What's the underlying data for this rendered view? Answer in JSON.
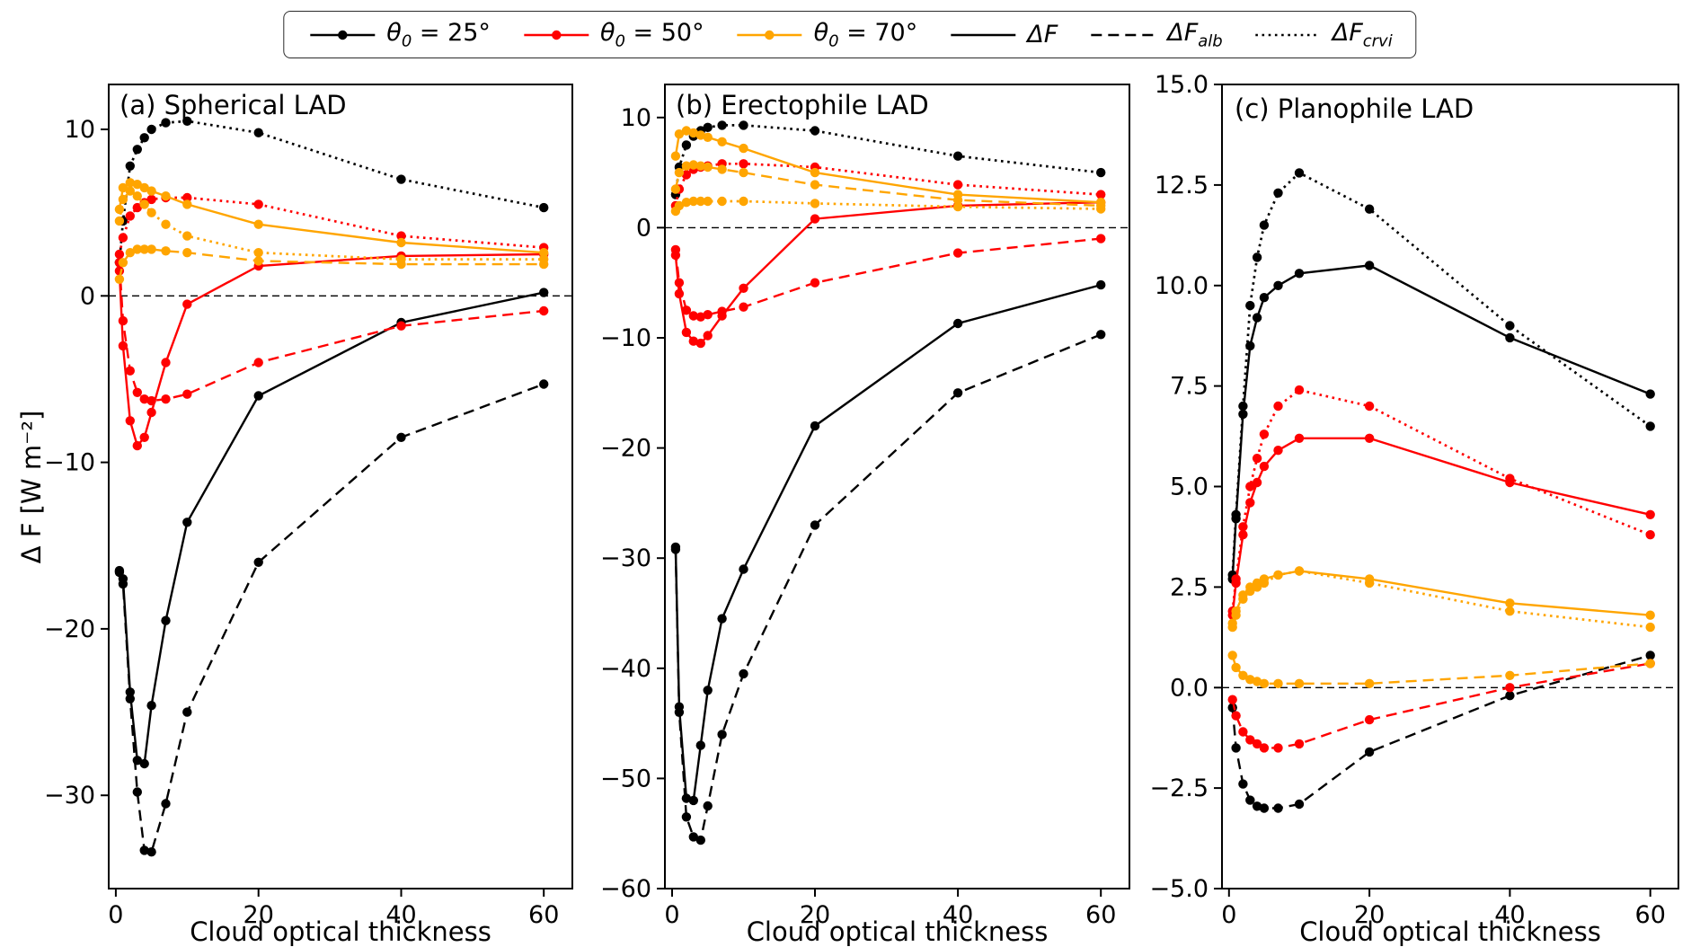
{
  "chart_data": {
    "type": "line",
    "title": "",
    "xlabel": "Cloud optical thickness",
    "ylabel": "Δ F [W m⁻²]",
    "grid": false,
    "markers": "filled circles on every point",
    "colors": {
      "theta25": "#000000",
      "theta50": "#ff0000",
      "theta70": "#ffa500"
    },
    "legend": {
      "position": "top-center",
      "items": [
        {
          "id": "theta-25",
          "sym": "θ",
          "sub": "0",
          "rest": " =  25°",
          "color": "#000000",
          "style": "solid",
          "marker": true
        },
        {
          "id": "theta-50",
          "sym": "θ",
          "sub": "0",
          "rest": " =  50°",
          "color": "#ff0000",
          "style": "solid",
          "marker": true
        },
        {
          "id": "theta-70",
          "sym": "θ",
          "sub": "0",
          "rest": " =  70°",
          "color": "#ffa500",
          "style": "solid",
          "marker": true
        },
        {
          "id": "dF",
          "sym": "ΔF",
          "sub": "",
          "rest": "",
          "color": "#000000",
          "style": "solid",
          "marker": false
        },
        {
          "id": "dF-alb",
          "sym": "ΔF",
          "sub": "alb",
          "rest": "",
          "color": "#000000",
          "style": "dashed",
          "marker": false
        },
        {
          "id": "dF-crvi",
          "sym": "ΔF",
          "sub": "crvi",
          "rest": "",
          "color": "#000000",
          "style": "dotted",
          "marker": false
        }
      ]
    },
    "panels": [
      {
        "id": "a",
        "title": "(a) Spherical LAD",
        "xlabel": "Cloud optical thickness",
        "xlim": [
          -1,
          64
        ],
        "ylim": [
          -35.6,
          12.7
        ],
        "xticks": [
          {
            "v": 0,
            "label": "0"
          },
          {
            "v": 20,
            "label": "20"
          },
          {
            "v": 40,
            "label": "40"
          },
          {
            "v": 60,
            "label": "60"
          }
        ],
        "yticks": [
          {
            "v": 10,
            "label": "10"
          },
          {
            "v": 0,
            "label": "0"
          },
          {
            "v": -10,
            "label": "−10"
          },
          {
            "v": -20,
            "label": "−20"
          },
          {
            "v": -30,
            "label": "−30"
          }
        ],
        "zero_line": true,
        "x": [
          0.5,
          1,
          2,
          3,
          4,
          5,
          7,
          10,
          20,
          40,
          60
        ],
        "series": [
          {
            "id": "a-t25-dF",
            "name": "θ0=25° ΔF",
            "color": "#000000",
            "style": "solid",
            "values": [
              -16.5,
              -17.0,
              -23.8,
              -27.9,
              -28.1,
              -24.6,
              -19.5,
              -13.6,
              -6.0,
              -1.6,
              0.2
            ]
          },
          {
            "id": "a-t25-dFalb",
            "name": "θ0=25° ΔF_alb",
            "color": "#000000",
            "style": "dashed",
            "values": [
              -16.6,
              -17.3,
              -24.2,
              -29.8,
              -33.3,
              -33.4,
              -30.5,
              -25.0,
              -16.0,
              -8.5,
              -5.3
            ]
          },
          {
            "id": "a-t25-dFcrvi",
            "name": "θ0=25° ΔF_crvi",
            "color": "#000000",
            "style": "dotted",
            "values": [
              2.0,
              4.5,
              7.8,
              8.8,
              9.5,
              10.0,
              10.4,
              10.5,
              9.8,
              7.0,
              5.3
            ]
          },
          {
            "id": "a-t50-dF",
            "name": "θ0=50° ΔF",
            "color": "#ff0000",
            "style": "solid",
            "values": [
              1.5,
              -3.0,
              -7.5,
              -9.0,
              -8.5,
              -7.0,
              -4.0,
              -0.5,
              1.8,
              2.4,
              2.5
            ]
          },
          {
            "id": "a-t50-dFalb",
            "name": "θ0=50° ΔF_alb",
            "color": "#ff0000",
            "style": "dashed",
            "values": [
              2.0,
              -1.5,
              -4.5,
              -5.8,
              -6.2,
              -6.3,
              -6.2,
              -5.9,
              -4.0,
              -1.8,
              -0.9
            ]
          },
          {
            "id": "a-t50-dFcrvi",
            "name": "θ0=50° ΔF_crvi",
            "color": "#ff0000",
            "style": "dotted",
            "values": [
              2.5,
              3.5,
              4.8,
              5.3,
              5.6,
              5.8,
              5.9,
              5.9,
              5.5,
              3.6,
              2.9
            ]
          },
          {
            "id": "a-t70-dF",
            "name": "θ0=70° ΔF",
            "color": "#ffa500",
            "style": "solid",
            "values": [
              5.2,
              6.5,
              6.8,
              6.7,
              6.5,
              6.3,
              6.0,
              5.5,
              4.3,
              3.2,
              2.6
            ]
          },
          {
            "id": "a-t70-dFalb",
            "name": "θ0=70° ΔF_alb",
            "color": "#ffa500",
            "style": "dashed",
            "values": [
              1.0,
              2.0,
              2.6,
              2.8,
              2.8,
              2.8,
              2.7,
              2.6,
              2.1,
              1.9,
              1.9
            ]
          },
          {
            "id": "a-t70-dFcrvi",
            "name": "θ0=70° ΔF_crvi",
            "color": "#ffa500",
            "style": "dotted",
            "values": [
              4.5,
              5.8,
              6.3,
              6.0,
              5.5,
              5.0,
              4.3,
              3.6,
              2.6,
              2.2,
              2.2
            ]
          }
        ]
      },
      {
        "id": "b",
        "title": "(b) Erectophile LAD",
        "xlabel": "Cloud optical thickness",
        "xlim": [
          -1,
          64
        ],
        "ylim": [
          -60,
          13
        ],
        "xticks": [
          {
            "v": 0,
            "label": "0"
          },
          {
            "v": 20,
            "label": "20"
          },
          {
            "v": 40,
            "label": "40"
          },
          {
            "v": 60,
            "label": "60"
          }
        ],
        "yticks": [
          {
            "v": 10,
            "label": "10"
          },
          {
            "v": 0,
            "label": "0"
          },
          {
            "v": -10,
            "label": "−10"
          },
          {
            "v": -20,
            "label": "−20"
          },
          {
            "v": -30,
            "label": "−30"
          },
          {
            "v": -40,
            "label": "−40"
          },
          {
            "v": -50,
            "label": "−50"
          },
          {
            "v": -60,
            "label": "−60"
          }
        ],
        "zero_line": true,
        "x": [
          0.5,
          1,
          2,
          3,
          4,
          5,
          7,
          10,
          20,
          40,
          60
        ],
        "series": [
          {
            "id": "b-t25-dF",
            "name": "θ0=25° ΔF",
            "color": "#000000",
            "style": "solid",
            "values": [
              -29.0,
              -43.5,
              -51.8,
              -52.0,
              -47.0,
              -42.0,
              -35.5,
              -31.0,
              -18.0,
              -8.7,
              -5.2
            ]
          },
          {
            "id": "b-t25-dFalb",
            "name": "θ0=25° ΔF_alb",
            "color": "#000000",
            "style": "dashed",
            "values": [
              -29.2,
              -44.0,
              -53.5,
              -55.3,
              -55.6,
              -52.5,
              -46.0,
              -40.5,
              -27.0,
              -15.0,
              -9.7
            ]
          },
          {
            "id": "b-t25-dFcrvi",
            "name": "θ0=25° ΔF_crvi",
            "color": "#000000",
            "style": "dotted",
            "values": [
              3.0,
              5.5,
              7.5,
              8.3,
              8.8,
              9.1,
              9.3,
              9.3,
              8.8,
              6.5,
              5.0
            ]
          },
          {
            "id": "b-t50-dF",
            "name": "θ0=50° ΔF",
            "color": "#ff0000",
            "style": "solid",
            "values": [
              -2.5,
              -6.0,
              -9.5,
              -10.3,
              -10.5,
              -9.8,
              -8.0,
              -5.5,
              0.8,
              2.0,
              2.3
            ]
          },
          {
            "id": "b-t50-dFalb",
            "name": "θ0=50° ΔF_alb",
            "color": "#ff0000",
            "style": "dashed",
            "values": [
              -2.0,
              -5.0,
              -7.5,
              -8.0,
              -8.1,
              -7.9,
              -7.6,
              -7.2,
              -5.0,
              -2.3,
              -1.0
            ]
          },
          {
            "id": "b-t50-dFcrvi",
            "name": "θ0=50° ΔF_crvi",
            "color": "#ff0000",
            "style": "dotted",
            "values": [
              2.0,
              3.5,
              4.8,
              5.3,
              5.5,
              5.6,
              5.8,
              5.8,
              5.5,
              3.9,
              3.0
            ]
          },
          {
            "id": "b-t70-dF",
            "name": "θ0=70° ΔF",
            "color": "#ffa500",
            "style": "solid",
            "values": [
              6.5,
              8.5,
              8.8,
              8.6,
              8.4,
              8.2,
              7.8,
              7.2,
              5.0,
              3.0,
              2.3
            ]
          },
          {
            "id": "b-t70-dFalb",
            "name": "θ0=70° ΔF_alb",
            "color": "#ffa500",
            "style": "dashed",
            "values": [
              3.5,
              5.0,
              5.6,
              5.7,
              5.6,
              5.5,
              5.3,
              5.0,
              3.9,
              2.5,
              2.0
            ]
          },
          {
            "id": "b-t70-dFcrvi",
            "name": "θ0=70° ΔF_crvi",
            "color": "#ffa500",
            "style": "dotted",
            "values": [
              1.5,
              2.0,
              2.3,
              2.4,
              2.4,
              2.4,
              2.4,
              2.4,
              2.2,
              1.9,
              1.7
            ]
          }
        ]
      },
      {
        "id": "c",
        "title": "(c) Planophile LAD",
        "xlabel": "Cloud optical thickness",
        "xlim": [
          -1,
          64
        ],
        "ylim": [
          -5,
          15
        ],
        "xticks": [
          {
            "v": 0,
            "label": "0"
          },
          {
            "v": 20,
            "label": "20"
          },
          {
            "v": 40,
            "label": "40"
          },
          {
            "v": 60,
            "label": "60"
          }
        ],
        "yticks": [
          {
            "v": 15,
            "label": "15.0"
          },
          {
            "v": 12.5,
            "label": "12.5"
          },
          {
            "v": 10,
            "label": "10.0"
          },
          {
            "v": 7.5,
            "label": "7.5"
          },
          {
            "v": 5,
            "label": "5.0"
          },
          {
            "v": 2.5,
            "label": "2.5"
          },
          {
            "v": 0,
            "label": "0.0"
          },
          {
            "v": -2.5,
            "label": "−2.5"
          },
          {
            "v": -5,
            "label": "−5.0"
          }
        ],
        "zero_line": true,
        "x": [
          0.5,
          1,
          2,
          3,
          4,
          5,
          7,
          10,
          20,
          40,
          60
        ],
        "series": [
          {
            "id": "c-t25-dF",
            "name": "θ0=25° ΔF",
            "color": "#000000",
            "style": "solid",
            "values": [
              2.7,
              4.2,
              6.8,
              8.5,
              9.2,
              9.7,
              10.0,
              10.3,
              10.5,
              8.7,
              7.3
            ]
          },
          {
            "id": "c-t25-dFalb",
            "name": "θ0=25° ΔF_alb",
            "color": "#000000",
            "style": "dashed",
            "values": [
              -0.5,
              -1.5,
              -2.4,
              -2.8,
              -2.95,
              -3.0,
              -3.0,
              -2.9,
              -1.6,
              -0.2,
              0.8
            ]
          },
          {
            "id": "c-t25-dFcrvi",
            "name": "θ0=25° ΔF_crvi",
            "color": "#000000",
            "style": "dotted",
            "values": [
              2.8,
              4.3,
              7.0,
              9.5,
              10.7,
              11.5,
              12.3,
              12.8,
              11.9,
              9.0,
              6.5
            ]
          },
          {
            "id": "c-t50-dF",
            "name": "θ0=50° ΔF",
            "color": "#ff0000",
            "style": "solid",
            "values": [
              1.8,
              2.6,
              3.8,
              4.6,
              5.1,
              5.5,
              5.9,
              6.2,
              6.2,
              5.1,
              4.3
            ]
          },
          {
            "id": "c-t50-dFalb",
            "name": "θ0=50° ΔF_alb",
            "color": "#ff0000",
            "style": "dashed",
            "values": [
              -0.3,
              -0.7,
              -1.1,
              -1.3,
              -1.4,
              -1.5,
              -1.5,
              -1.4,
              -0.8,
              0.0,
              0.6
            ]
          },
          {
            "id": "c-t50-dFcrvi",
            "name": "θ0=50° ΔF_crvi",
            "color": "#ff0000",
            "style": "dotted",
            "values": [
              1.9,
              2.7,
              4.0,
              5.0,
              5.7,
              6.3,
              7.0,
              7.4,
              7.0,
              5.2,
              3.8
            ]
          },
          {
            "id": "c-t70-dF",
            "name": "θ0=70° ΔF",
            "color": "#ffa500",
            "style": "solid",
            "values": [
              1.6,
              1.9,
              2.3,
              2.5,
              2.6,
              2.7,
              2.8,
              2.9,
              2.7,
              2.1,
              1.8
            ]
          },
          {
            "id": "c-t70-dFalb",
            "name": "θ0=70° ΔF_alb",
            "color": "#ffa500",
            "style": "dashed",
            "values": [
              0.8,
              0.5,
              0.3,
              0.2,
              0.15,
              0.1,
              0.1,
              0.1,
              0.1,
              0.3,
              0.6
            ]
          },
          {
            "id": "c-t70-dFcrvi",
            "name": "θ0=70° ΔF_crvi",
            "color": "#ffa500",
            "style": "dotted",
            "values": [
              1.5,
              1.8,
              2.2,
              2.4,
              2.5,
              2.6,
              2.8,
              2.9,
              2.6,
              1.9,
              1.5
            ]
          }
        ]
      }
    ]
  }
}
